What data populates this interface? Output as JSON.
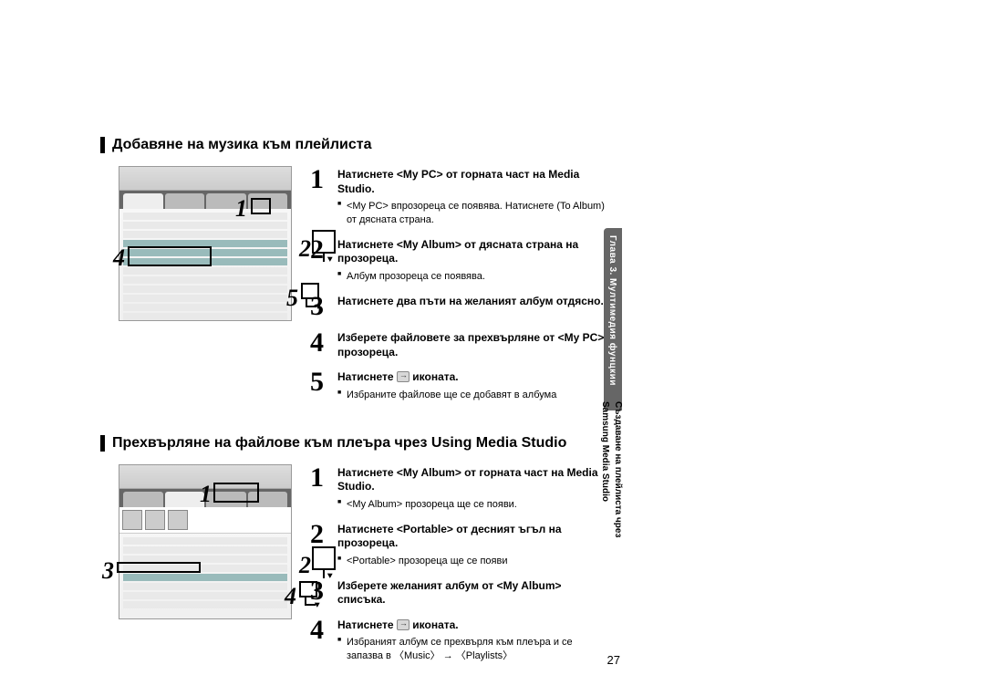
{
  "section1": {
    "heading": "Добавяне на музика към плейлиста",
    "callouts": [
      "1",
      "2",
      "4",
      "5"
    ],
    "steps": [
      {
        "num": "1",
        "title": "Натиснете <My PC> от горната част на Media Studio.",
        "sub": "<My PC> впрозореца се появява. Натиснете (To Album) от дясната страна."
      },
      {
        "num": "2",
        "title": "Натиснете <My Album> от дясната страна на прозореца.",
        "sub": "Албум прозореца се появява."
      },
      {
        "num": "3",
        "title": "Натиснете два пъти на желаният албум отдясно."
      },
      {
        "num": "4",
        "title": "Изберете файловете за прехвърляне от <My PC> прозореца."
      },
      {
        "num": "5",
        "title_pre": "Натиснете ",
        "title_post": " иконата.",
        "sub": "Избраните файлове ще се добавят в албума"
      }
    ]
  },
  "section2": {
    "heading": "Прехвърляне на файлове към плеъра чрез Using Media Studio",
    "callouts": [
      "1",
      "2",
      "3",
      "4"
    ],
    "steps": [
      {
        "num": "1",
        "title": "Натиснете <My Album> от горната част на Media Studio.",
        "sub": "<My Album> прозореца ще се появи."
      },
      {
        "num": "2",
        "title": "Натиснете <Portable> от десният ъгъл на прозореца.",
        "sub": "<Portable> прозореца ще се появи"
      },
      {
        "num": "3",
        "title": "Изберете желаният албум от <My Album> списъка."
      },
      {
        "num": "4",
        "title_pre": "Натиснете ",
        "title_post": " иконата.",
        "sub": "Избраният албум се прехвърля към плеъра и се запазва в 〈Music〉 → 〈Playlists〉"
      }
    ]
  },
  "sideTab": "Глава 3. Мултимедия фунцкии",
  "sideCaption": "Създаване на плейлиста чрез\nSamsung Media Studio",
  "pageNumber": "27"
}
